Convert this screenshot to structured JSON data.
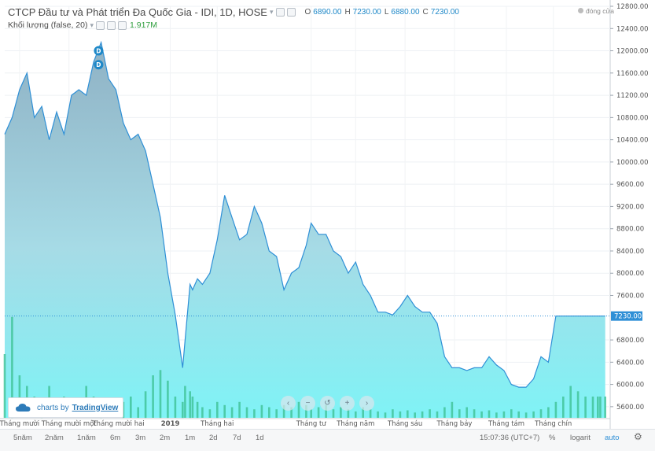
{
  "header": {
    "title": "CTCP Đầu tư và Phát triển Đa Quốc Gia - IDI, 1D, HOSE",
    "ohlc": [
      {
        "label": "O",
        "value": "6890.00"
      },
      {
        "label": "H",
        "value": "7230.00"
      },
      {
        "label": "L",
        "value": "6880.00"
      },
      {
        "label": "C",
        "value": "7230.00"
      }
    ],
    "volume_label": "Khối lượng (false, 20)",
    "volume_value": "1.917M",
    "status": "đóng cửa"
  },
  "branding": {
    "prefix": "charts by",
    "brand": "TradingView"
  },
  "timeframes": [
    "5năm",
    "2năm",
    "1năm",
    "6m",
    "3m",
    "2m",
    "1m",
    "2d",
    "7d",
    "1d"
  ],
  "bottom_right": {
    "time": "15:07:36 (UTC+7)",
    "percent": "%",
    "log": "logarit",
    "auto": "auto"
  },
  "colors": {
    "line": "#2e8fd6",
    "area_top": "#8fb1c4",
    "area_bottom": "#7ff3f6",
    "volume": "#43c49a",
    "price_tag": "#2e8fd6"
  },
  "chart_data": {
    "type": "area",
    "ylim": [
      5400,
      12800
    ],
    "y_ticks": [
      5600,
      6000,
      6400,
      6800,
      7230,
      7600,
      8000,
      8400,
      8800,
      9200,
      9600,
      10000,
      10400,
      10800,
      11200,
      11600,
      12000,
      12400,
      12800
    ],
    "y_tick_labels": [
      "5600.00",
      "6000.00",
      "6400.00",
      "6800.00",
      "7230.00",
      "7600.00",
      "8000.00",
      "8400.00",
      "8800.00",
      "9200.00",
      "9600.00",
      "10000.00",
      "10400.00",
      "10800.00",
      "11200.00",
      "11600.00",
      "12000.00",
      "12400.00",
      "12800.00"
    ],
    "last_price": 7230,
    "last_price_label": "7230.00",
    "x_labels": [
      "Tháng mười",
      "Tháng mười một",
      "Tháng mười hai",
      "2019",
      "Tháng hai",
      "Tháng tư",
      "Tháng năm",
      "Tháng sáu",
      "Tháng bảy",
      "Tháng tám",
      "Tháng chín"
    ],
    "x_label_pos": [
      6,
      26,
      46,
      67,
      86,
      124,
      142,
      162,
      182,
      203,
      222
    ],
    "x": [
      0,
      3,
      6,
      9,
      12,
      15,
      18,
      21,
      24,
      27,
      30,
      33,
      36,
      39,
      42,
      45,
      48,
      51,
      54,
      57,
      60,
      63,
      66,
      69,
      72,
      73,
      75,
      76,
      78,
      80,
      83,
      86,
      89,
      92,
      95,
      98,
      101,
      104,
      107,
      110,
      113,
      116,
      119,
      122,
      124,
      127,
      130,
      133,
      136,
      139,
      142,
      145,
      148,
      151,
      154,
      157,
      160,
      163,
      166,
      169,
      172,
      175,
      178,
      181,
      184,
      187,
      190,
      193,
      196,
      199,
      202,
      205,
      208,
      211,
      214,
      217,
      220,
      223,
      226,
      229,
      232,
      235,
      238,
      240,
      241,
      243
    ],
    "price": [
      10500,
      10800,
      11300,
      11600,
      10800,
      11000,
      10400,
      10900,
      10500,
      11200,
      11300,
      11200,
      11800,
      12150,
      11500,
      11300,
      10700,
      10400,
      10500,
      10200,
      9600,
      9000,
      8000,
      7250,
      6300,
      6800,
      7800,
      7700,
      7900,
      7800,
      8000,
      8600,
      9400,
      9000,
      8600,
      8700,
      9200,
      8900,
      8400,
      8300,
      7700,
      8000,
      8100,
      8500,
      8900,
      8700,
      8700,
      8400,
      8300,
      8000,
      8200,
      7800,
      7600,
      7300,
      7300,
      7250,
      7400,
      7600,
      7400,
      7300,
      7300,
      7100,
      6500,
      6300,
      6300,
      6250,
      6300,
      6300,
      6500,
      6350,
      6250,
      6000,
      5950,
      5950,
      6100,
      6500,
      6400,
      7230,
      7230,
      7230,
      7230,
      7230,
      7230,
      7230,
      7230,
      7230
    ],
    "markers": [
      {
        "x": 38,
        "price": 12000,
        "label": "D"
      },
      {
        "x": 38,
        "price": 11750,
        "label": "D"
      }
    ],
    "volume_rel": [
      0.6,
      0.95,
      0.4,
      0.3,
      0.2,
      0.15,
      0.3,
      0.1,
      0.2,
      0.12,
      0.1,
      0.3,
      0.2,
      0.15,
      0.12,
      0.1,
      0.15,
      0.2,
      0.1,
      0.25,
      0.4,
      0.45,
      0.35,
      0.2,
      0.15,
      0.3,
      0.25,
      0.2,
      0.15,
      0.1,
      0.08,
      0.15,
      0.12,
      0.1,
      0.15,
      0.1,
      0.08,
      0.12,
      0.1,
      0.08,
      0.12,
      0.1,
      0.15,
      0.12,
      0.08,
      0.1,
      0.12,
      0.08,
      0.1,
      0.08,
      0.06,
      0.1,
      0.08,
      0.06,
      0.05,
      0.08,
      0.06,
      0.07,
      0.05,
      0.06,
      0.08,
      0.06,
      0.1,
      0.15,
      0.08,
      0.1,
      0.08,
      0.06,
      0.07,
      0.05,
      0.06,
      0.08,
      0.06,
      0.05,
      0.06,
      0.08,
      0.1,
      0.15,
      0.2,
      0.3,
      0.25,
      0.2,
      0.2,
      0.2,
      0.2,
      0.2
    ],
    "tradingview_controls": [
      "−",
      "+",
      "↺",
      "‹",
      "›"
    ]
  }
}
